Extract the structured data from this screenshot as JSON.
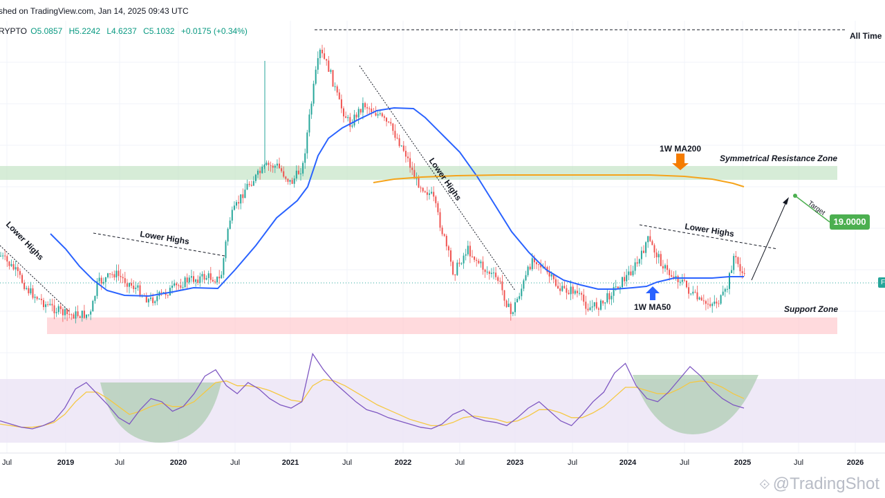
{
  "header": {
    "publish_line": "shed on TradingView.com, Jan 14, 2025 09:43 UTC",
    "symbol_fragment": "RYPTO",
    "open": "O5.0857",
    "high": "H5.2242",
    "low": "L4.6237",
    "close": "C5.1032",
    "change": "+0.0175 (+0.34%)"
  },
  "annotations": {
    "all_time": "All Time",
    "symmetrical_resistance": "Symmetrical Resistance Zone",
    "support_zone": "Support Zone",
    "ma200": "1W MA200",
    "ma50": "1W MA50",
    "lower_highs": "Lower Highs",
    "target": "Target",
    "target_value": "19.0000",
    "right_tag": "F"
  },
  "watermark": "@TradingShot",
  "colors": {
    "up": "#26a69a",
    "down": "#ef5350",
    "ma50": "#2962ff",
    "ma200": "#f5a31a",
    "resistance_zone": "#c8e6c9",
    "support_zone": "#ffcdd2",
    "rsi_band": "#ede7f6",
    "rsi_line": "#7e57c2",
    "rsi_ma": "#f5c842",
    "target_badge": "#4caf50"
  },
  "chart_data": [
    {
      "type": "candlestick",
      "x_axis_labels": [
        "Jul",
        "2019",
        "Jul",
        "2020",
        "Jul",
        "2021",
        "Jul",
        "2022",
        "Jul",
        "2023",
        "Jul",
        "2024",
        "Jul",
        "2025",
        "Jul",
        "2026"
      ],
      "overlays": [
        "1W MA50",
        "1W MA200"
      ],
      "zones": [
        "Symmetrical Resistance Zone",
        "Support Zone"
      ],
      "last_close": 5.1032,
      "ohlc_last": {
        "open": 5.0857,
        "high": 5.2242,
        "low": 4.6237,
        "close": 5.1032
      },
      "target": 19.0
    },
    {
      "type": "line",
      "panel": "RSI",
      "series": [
        {
          "values": [
            38,
            36,
            34,
            33,
            35,
            38,
            46,
            58,
            62,
            55,
            48,
            40,
            36,
            45,
            52,
            50,
            44,
            47,
            55,
            66,
            70,
            60,
            55,
            62,
            58,
            52,
            48,
            46,
            50,
            80,
            70,
            62,
            56,
            50,
            45,
            43,
            40,
            38,
            36,
            34,
            33,
            36,
            42,
            45,
            40,
            38,
            37,
            35,
            40,
            46,
            50,
            44,
            38,
            35,
            42,
            50,
            56,
            68,
            74,
            60,
            52,
            50,
            56,
            64,
            72,
            66,
            58,
            52,
            48,
            46
          ]
        },
        {
          "values": [
            36,
            35,
            34,
            34,
            35,
            37,
            42,
            50,
            56,
            56,
            52,
            47,
            42,
            44,
            47,
            49,
            47,
            47,
            50,
            56,
            62,
            63,
            60,
            60,
            59,
            57,
            54,
            51,
            50,
            60,
            64,
            63,
            60,
            56,
            52,
            48,
            45,
            42,
            39,
            37,
            35,
            35,
            37,
            40,
            41,
            40,
            39,
            37,
            38,
            41,
            45,
            45,
            43,
            40,
            40,
            43,
            47,
            53,
            59,
            59,
            57,
            55,
            55,
            58,
            62,
            63,
            62,
            59,
            55,
            52
          ]
        }
      ]
    }
  ]
}
